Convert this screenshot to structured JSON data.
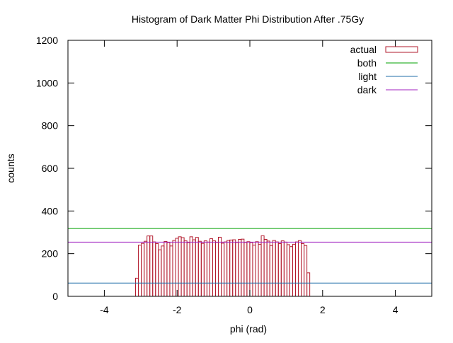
{
  "chart_data": {
    "type": "bar",
    "title": "Histogram of Dark Matter Phi Distribution After .75Gy",
    "xlabel": "phi (rad)",
    "ylabel": "counts",
    "xlim": [
      -5,
      5
    ],
    "ylim": [
      0,
      1200
    ],
    "xticks": [
      -4,
      -2,
      0,
      2,
      4
    ],
    "yticks": [
      0,
      200,
      400,
      600,
      800,
      1000,
      1200
    ],
    "legend_position": "top-right",
    "grid": false,
    "histogram": {
      "name": "actual",
      "color": "#b2182b",
      "bin_start": -3.14159,
      "bin_width": 0.0785,
      "counts": [
        85,
        240,
        248,
        258,
        283,
        283,
        255,
        247,
        218,
        236,
        257,
        252,
        236,
        262,
        272,
        279,
        275,
        260,
        252,
        279,
        265,
        276,
        258,
        248,
        260,
        254,
        270,
        260,
        253,
        277,
        249,
        255,
        262,
        264,
        265,
        253,
        267,
        268,
        253,
        256,
        252,
        240,
        256,
        244,
        284,
        267,
        259,
        238,
        262,
        255,
        247,
        260,
        254,
        242,
        233,
        244,
        255,
        261,
        247,
        238,
        110
      ]
    },
    "series": [
      {
        "name": "both",
        "color": "#00a000",
        "y": 318
      },
      {
        "name": "light",
        "color": "#1f6ea8",
        "y": 62
      },
      {
        "name": "dark",
        "color": "#a020c0",
        "y": 254
      }
    ]
  }
}
